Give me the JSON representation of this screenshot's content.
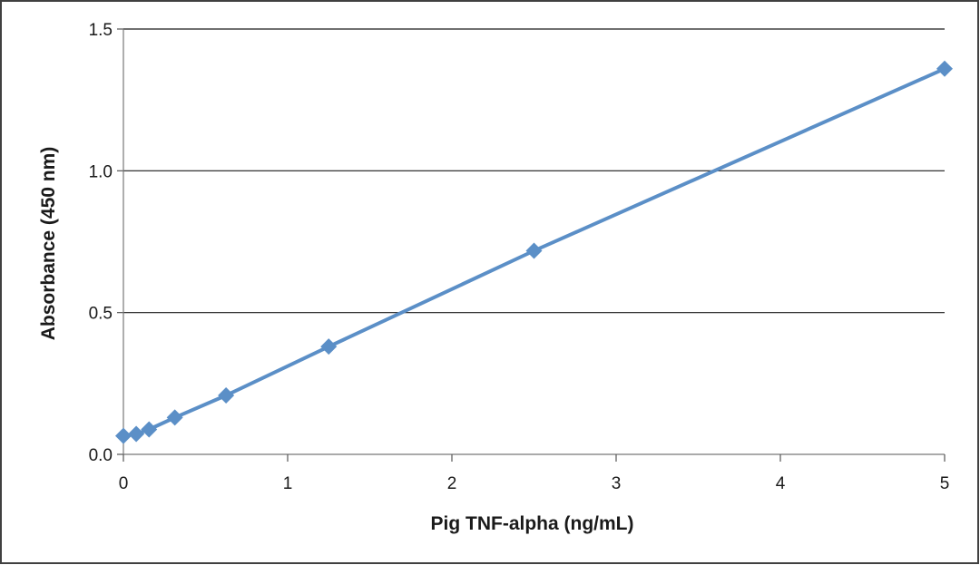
{
  "chart_data": {
    "type": "line",
    "title": "",
    "xlabel": "Pig TNF-alpha (ng/mL)",
    "ylabel": "Absorbance  (450  nm)",
    "xlim": [
      0,
      5
    ],
    "ylim": [
      0,
      1.5
    ],
    "x_ticks": [
      "0",
      "1",
      "2",
      "3",
      "4",
      "5"
    ],
    "y_ticks": [
      "0.0",
      "0.5",
      "1.0",
      "1.5"
    ],
    "grid": "horizontal",
    "legend": "none",
    "series": [
      {
        "color": "#5b8fc7",
        "marker": "diamond",
        "x": [
          0,
          0.078,
          0.156,
          0.313,
          0.625,
          1.25,
          2.5,
          5
        ],
        "y": [
          0.065,
          0.072,
          0.088,
          0.13,
          0.208,
          0.38,
          0.718,
          1.36
        ]
      }
    ]
  }
}
